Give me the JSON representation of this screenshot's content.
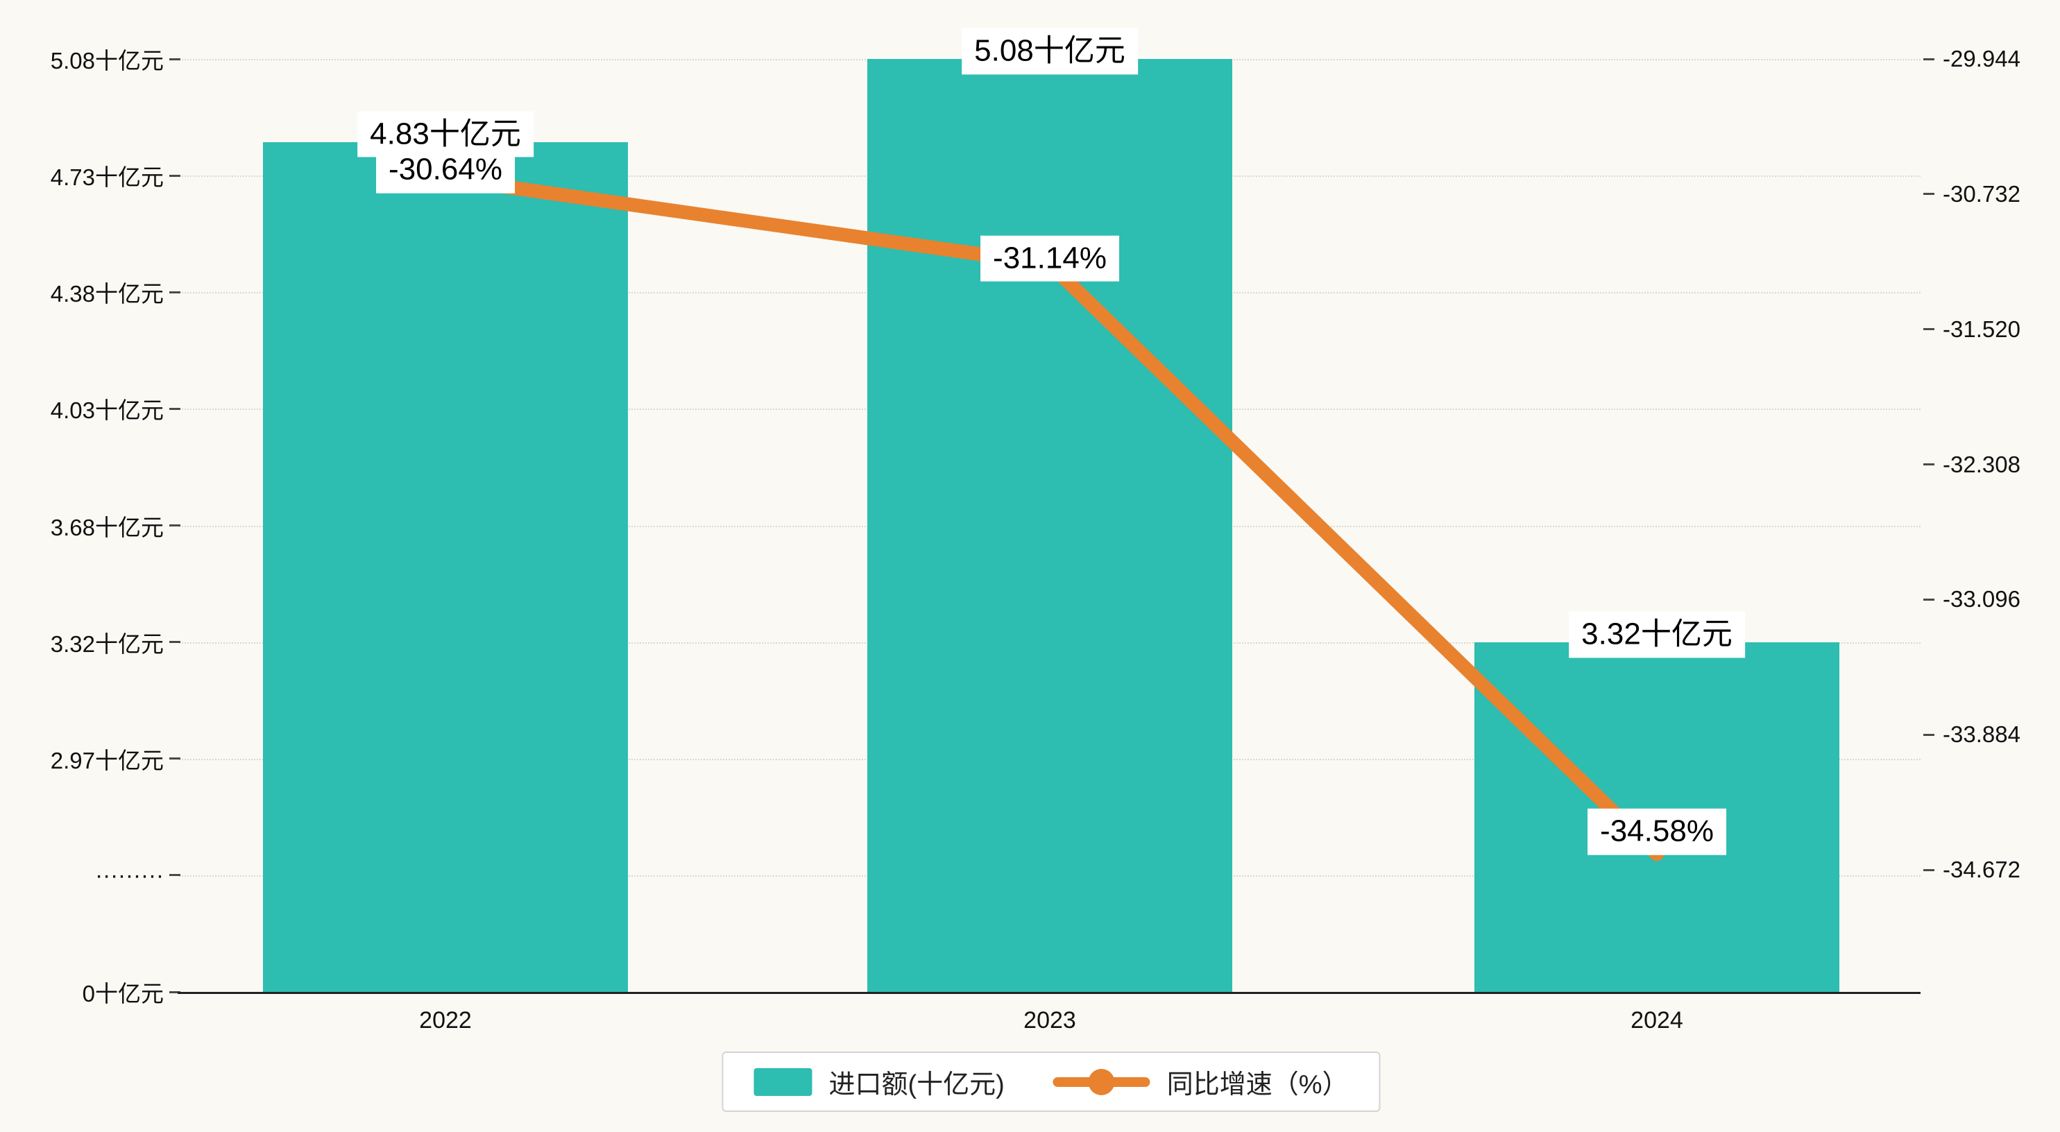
{
  "chart_data": {
    "type": "bar+line",
    "categories": [
      "2022",
      "2023",
      "2024"
    ],
    "series": [
      {
        "name": "进口额(十亿元)",
        "type": "bar",
        "axis": "left",
        "color": "#2dbdb1",
        "values": [
          4.83,
          5.08,
          3.32
        ],
        "data_labels": [
          "4.83十亿元",
          "5.08十亿元",
          "3.32十亿元"
        ]
      },
      {
        "name": "同比增速（%）",
        "type": "line",
        "axis": "right",
        "color": "#e8822f",
        "values": [
          -30.64,
          -31.14,
          -34.58
        ],
        "data_labels": [
          "-30.64%",
          "-31.14%",
          "-34.58%"
        ]
      }
    ],
    "left_axis": {
      "tick_labels": [
        "5.08十亿元",
        "4.73十亿元",
        "4.38十亿元",
        "4.03十亿元",
        "3.68十亿元",
        "3.32十亿元",
        "2.97十亿元",
        "·········",
        "0十亿元"
      ],
      "tick_values": [
        5.08,
        4.73,
        4.38,
        4.03,
        3.68,
        3.32,
        2.97,
        null,
        0
      ],
      "broken_axis": true
    },
    "right_axis": {
      "tick_labels": [
        "-29.944",
        "-30.732",
        "-31.520",
        "-32.308",
        "-33.096",
        "-33.884",
        "-34.672"
      ],
      "tick_values": [
        -29.944,
        -30.732,
        -31.52,
        -32.308,
        -33.096,
        -33.884,
        -34.672
      ]
    },
    "legend": {
      "position": "bottom-center",
      "items": [
        {
          "label": "进口额(十亿元)",
          "marker": "bar-swatch"
        },
        {
          "label": "同比增速（%）",
          "marker": "line-dot"
        }
      ]
    },
    "grid": "dotted-horizontal",
    "background": "#faf9f4"
  }
}
